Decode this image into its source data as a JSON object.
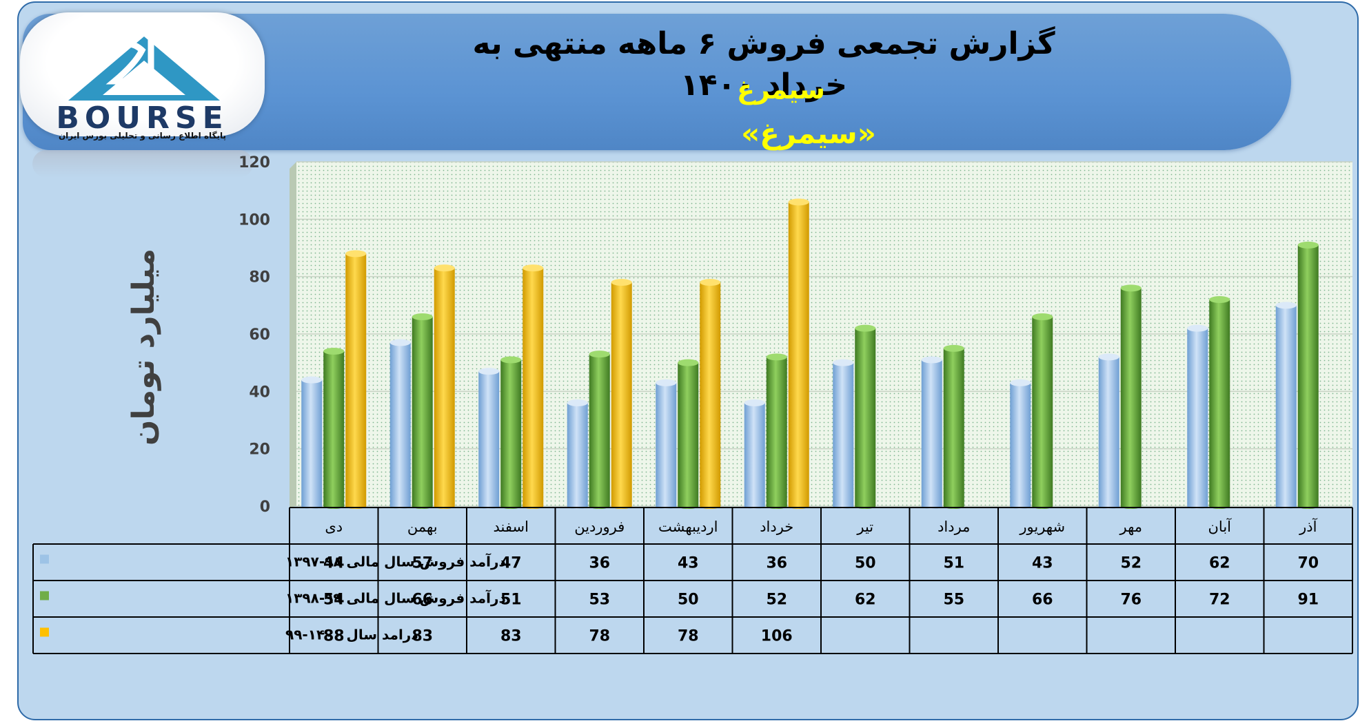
{
  "header": {
    "title": "گزارش تجمعی فروش ۶ ماهه منتهی به خرداد ۱۴۰۰",
    "subtitle": "سیمرغ",
    "ticker": "«سیمرغ»"
  },
  "logo": {
    "text": "BOURSE",
    "tagline": "پایگاه اطلاع رسانی و تحلیلی بورس ایران"
  },
  "colors": {
    "series_1": "#9dc3e6",
    "series_2": "#70ad47",
    "series_3": "#ffc000"
  },
  "chart_data": {
    "type": "bar",
    "style": "3d-cylinder",
    "ylabel": "میلیارد تومان",
    "ylim": [
      0,
      120
    ],
    "yticks": [
      0,
      20,
      40,
      60,
      80,
      100,
      120
    ],
    "categories": [
      "دی",
      "بهمن",
      "اسفند",
      "فروردین",
      "اردیبهشت",
      "خرداد",
      "تیر",
      "مرداد",
      "شهریور",
      "مهر",
      "آبان",
      "آذر"
    ],
    "series": [
      {
        "name": "درآمد فروش سال مالی ۹۸-۱۳۹۷",
        "values": [
          44,
          57,
          47,
          36,
          43,
          36,
          50,
          51,
          43,
          52,
          62,
          70
        ]
      },
      {
        "name": "درآمد فروش سال مالی ۹۹-۱۳۹۸",
        "values": [
          54,
          66,
          51,
          53,
          50,
          52,
          62,
          55,
          66,
          76,
          72,
          91
        ]
      },
      {
        "name": "درامد سال ۱۴۰۰-۹۹",
        "values": [
          88,
          83,
          83,
          78,
          78,
          106,
          null,
          null,
          null,
          null,
          null,
          null
        ]
      }
    ],
    "grid": true,
    "legend": "data-table"
  }
}
